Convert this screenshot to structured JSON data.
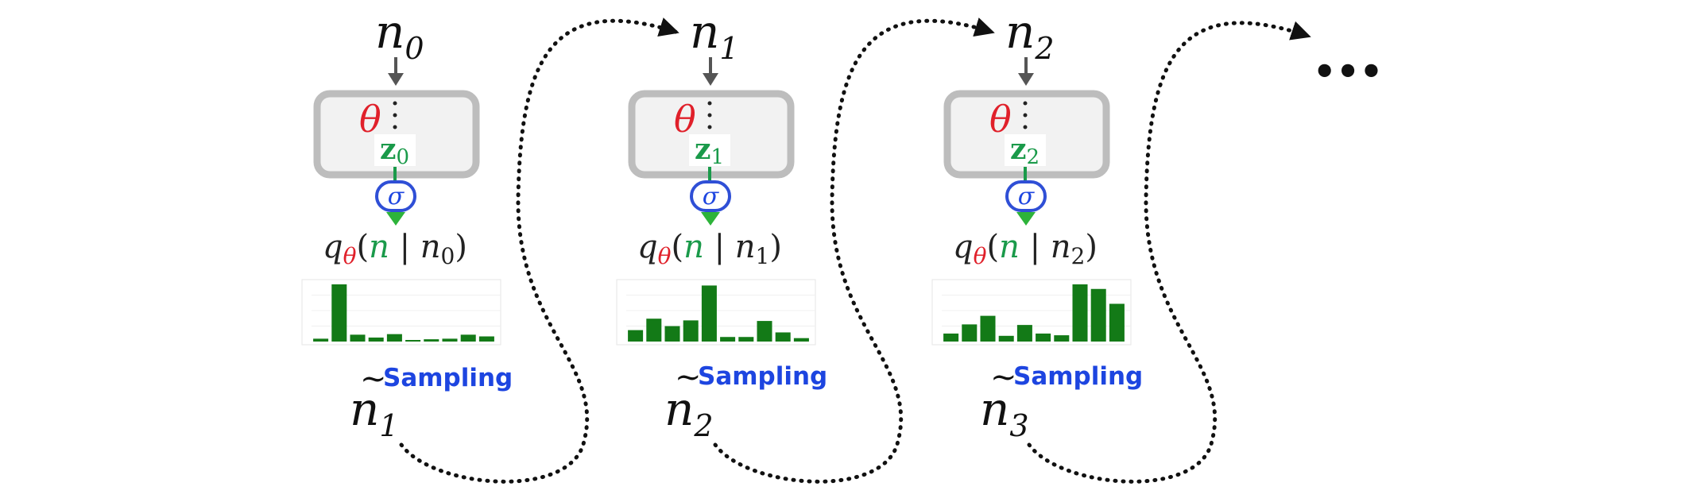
{
  "stages": [
    {
      "input": {
        "base": "n",
        "sub": "0"
      },
      "param": "θ",
      "latent": {
        "base": "z",
        "sub": "0"
      },
      "activation": "σ",
      "dist": {
        "q": "q",
        "theta": "θ",
        "n": "n",
        "cond": "n",
        "sub": "0"
      },
      "sampling": "Sampling",
      "output": {
        "base": "n",
        "sub": "1"
      },
      "hist": [
        0.05,
        1.0,
        0.12,
        0.07,
        0.13,
        0.02,
        0.04,
        0.05,
        0.12,
        0.09
      ]
    },
    {
      "input": {
        "base": "n",
        "sub": "1"
      },
      "param": "θ",
      "latent": {
        "base": "z",
        "sub": "1"
      },
      "activation": "σ",
      "dist": {
        "q": "q",
        "theta": "θ",
        "n": "n",
        "cond": "n",
        "sub": "1"
      },
      "sampling": "Sampling",
      "output": {
        "base": "n",
        "sub": "2"
      },
      "hist": [
        0.2,
        0.4,
        0.27,
        0.37,
        0.98,
        0.08,
        0.08,
        0.36,
        0.16,
        0.06
      ]
    },
    {
      "input": {
        "base": "n",
        "sub": "2"
      },
      "param": "θ",
      "latent": {
        "base": "z",
        "sub": "2"
      },
      "activation": "σ",
      "dist": {
        "q": "q",
        "theta": "θ",
        "n": "n",
        "cond": "n",
        "sub": "2"
      },
      "sampling": "Sampling",
      "output": {
        "base": "n",
        "sub": "3"
      },
      "hist": [
        0.14,
        0.3,
        0.45,
        0.1,
        0.29,
        0.14,
        0.11,
        1.0,
        0.92,
        0.66
      ]
    }
  ],
  "ellipsis": "•••",
  "colors": {
    "param": "#e0202a",
    "latent": "#1a9a4a",
    "sampling": "#1d45e0",
    "bar": "#137a17",
    "box_border": "#bdbdbd",
    "box_fill": "#f2f2f2",
    "arrow": "#555555"
  }
}
